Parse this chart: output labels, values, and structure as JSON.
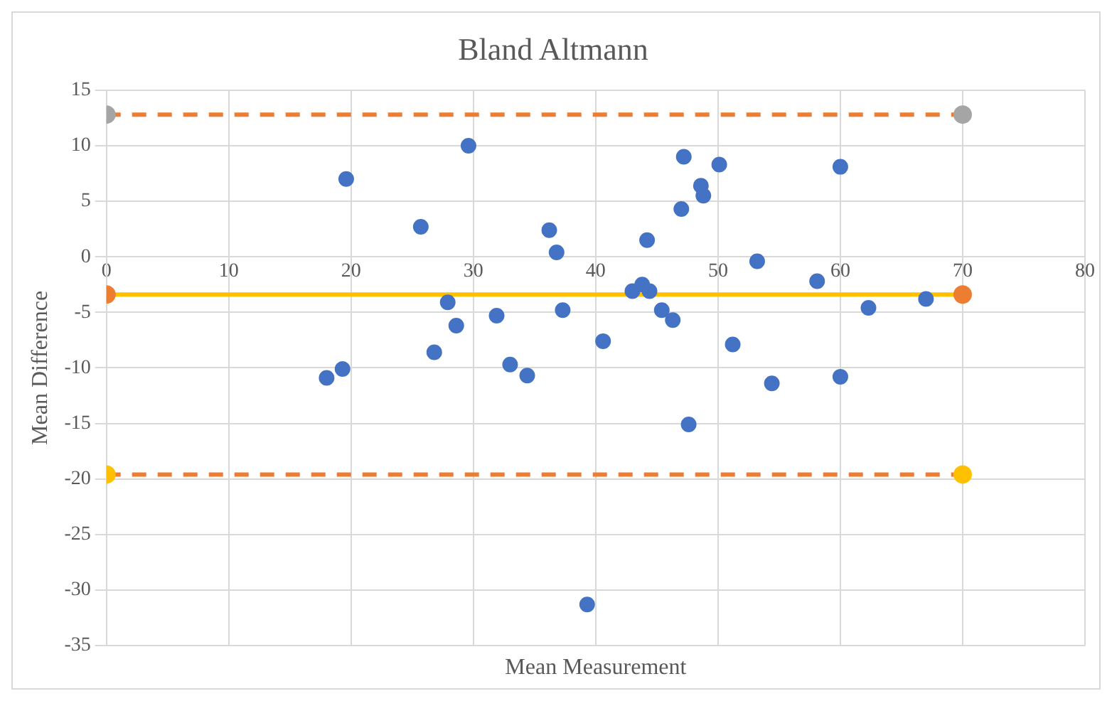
{
  "chart_data": {
    "type": "scatter",
    "title": "Bland Altmann",
    "xlabel": "Mean Measurement",
    "ylabel": "Mean Difference",
    "xlim": [
      0,
      80
    ],
    "xticks": [
      0,
      10,
      20,
      30,
      40,
      50,
      60,
      70,
      80
    ],
    "ylim": [
      -35,
      15
    ],
    "yticks": [
      -35,
      -30,
      -25,
      -20,
      -15,
      -10,
      -5,
      0,
      5,
      10,
      15
    ],
    "grid": true,
    "legend": false,
    "marker": "circle",
    "series": [
      {
        "type": "scatter",
        "color": "#4472c4",
        "x": [
          18,
          19.3,
          19.6,
          25.7,
          26.8,
          27.9,
          28.6,
          29.6,
          31.9,
          33,
          34.4,
          36.2,
          36.8,
          37.3,
          39.3,
          40.6,
          43,
          43.8,
          44.4,
          44.2,
          45.4,
          46.3,
          47.2,
          47,
          47.6,
          48.6,
          48.8,
          50.1,
          51.2,
          53.2,
          54.4,
          58.1,
          60,
          60,
          62.3,
          67
        ],
        "values": [
          -10.9,
          -10.1,
          7,
          2.7,
          -8.6,
          -4.1,
          -6.2,
          10,
          -5.3,
          -9.7,
          -10.7,
          2.4,
          0.4,
          -4.8,
          -31.3,
          -7.6,
          -3.1,
          -2.5,
          -3.1,
          1.5,
          -4.8,
          -5.7,
          9,
          4.3,
          -15.1,
          6.4,
          5.5,
          8.3,
          -7.9,
          -0.4,
          -11.4,
          -2.2,
          8.1,
          -10.8,
          -4.6,
          -3.8
        ]
      },
      {
        "type": "line",
        "color": "#ed7d31",
        "line_style": "dashed",
        "colors": [
          "#a5a5a5",
          "#a5a5a5"
        ],
        "x": [
          0,
          70
        ],
        "values": [
          12.8,
          12.8
        ]
      },
      {
        "type": "line",
        "color": "#ffc000",
        "line_style": "solid",
        "colors": [
          "#ed7d31",
          "#ed7d31"
        ],
        "x": [
          0,
          70
        ],
        "values": [
          -3.4,
          -3.4
        ]
      },
      {
        "type": "line",
        "color": "#ed7d31",
        "line_style": "dashed",
        "colors": [
          "#ffc000",
          "#ffc000"
        ],
        "x": [
          0,
          70
        ],
        "values": [
          -19.6,
          -19.6
        ]
      }
    ]
  }
}
